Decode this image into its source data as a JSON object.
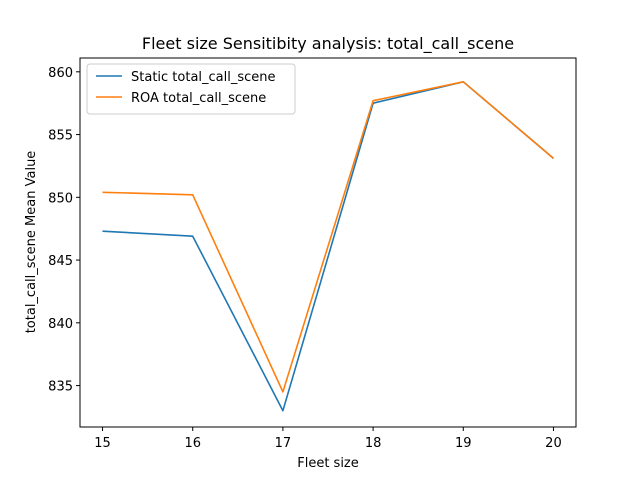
{
  "chart_data": {
    "type": "line",
    "title": "Fleet size Sensitibity analysis: total_call_scene",
    "xlabel": "Fleet size",
    "ylabel": "total_call_scene Mean Value",
    "x": [
      15,
      16,
      17,
      18,
      19,
      20
    ],
    "xticks": [
      15,
      16,
      17,
      18,
      19,
      20
    ],
    "yticks": [
      835,
      840,
      845,
      850,
      855,
      860
    ],
    "xlim": [
      14.75,
      20.25
    ],
    "ylim": [
      831.7,
      861.1
    ],
    "legend_position": "upper-left",
    "grid": false,
    "series": [
      {
        "name": "Static total_call_scene",
        "color": "#1f77b4",
        "values": [
          847.3,
          846.9,
          833.0,
          857.5,
          859.2,
          853.1
        ]
      },
      {
        "name": "ROA total_call_scene",
        "color": "#ff7f0e",
        "values": [
          850.4,
          850.2,
          834.5,
          857.7,
          859.2,
          853.1
        ]
      }
    ]
  }
}
